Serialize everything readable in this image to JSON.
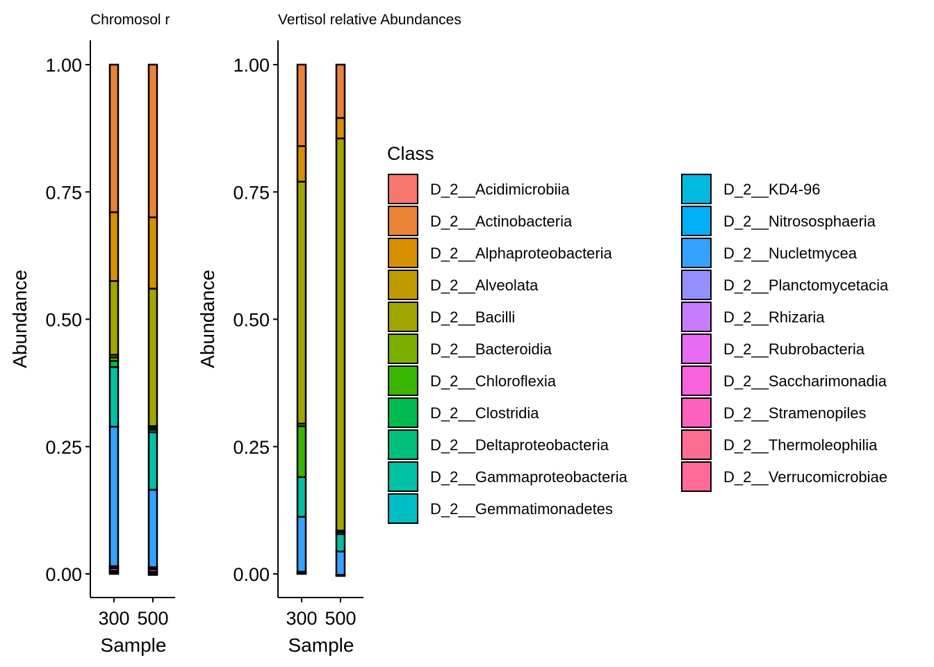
{
  "chart_data": [
    {
      "type": "bar",
      "stacked": true,
      "title": "Chromosol r",
      "xlabel": "Sample",
      "ylabel": "Abundance",
      "ylim": [
        0,
        1
      ],
      "yticks": [
        "0.00",
        "0.25",
        "0.50",
        "0.75",
        "1.00"
      ],
      "categories": [
        "300",
        "500"
      ],
      "series": [
        {
          "name": "D_2__Actinobacteria",
          "values": [
            0.29,
            0.3
          ]
        },
        {
          "name": "D_2__Alphaproteobacteria",
          "values": [
            0.135,
            0.14
          ]
        },
        {
          "name": "D_2__Bacilli",
          "values": [
            0.145,
            0.27
          ]
        },
        {
          "name": "D_2__Bacteroidia",
          "values": [
            0.005,
            0.003
          ]
        },
        {
          "name": "D_2__Chloroflexia",
          "values": [
            0.007,
            0.004
          ]
        },
        {
          "name": "D_2__Clostridia",
          "values": [
            0.012,
            0.005
          ]
        },
        {
          "name": "D_2__Gammaproteobacteria",
          "values": [
            0.117,
            0.113
          ]
        },
        {
          "name": "D_2__Nucletmycea",
          "values": [
            0.274,
            0.152
          ]
        },
        {
          "name": "D_2__Nitrososphaeria",
          "values": [
            0.002,
            0.002
          ]
        },
        {
          "name": "D_2__Rhizaria",
          "values": [
            0.002,
            0.002
          ]
        },
        {
          "name": "D_2__Stramenopiles",
          "values": [
            0.005,
            0.005
          ]
        },
        {
          "name": "D_2__Thermoleophilia",
          "values": [
            0.003,
            0.003
          ]
        },
        {
          "name": "D_2__Verrucomicrobiae",
          "values": [
            0.003,
            0.003
          ]
        }
      ]
    },
    {
      "type": "bar",
      "stacked": true,
      "title": "Vertisol relative Abundances",
      "xlabel": "Sample",
      "ylabel": "Abundance",
      "ylim": [
        0,
        1
      ],
      "yticks": [
        "0.00",
        "0.25",
        "0.50",
        "0.75",
        "1.00"
      ],
      "categories": [
        "300",
        "500"
      ],
      "series": [
        {
          "name": "D_2__Actinobacteria",
          "values": [
            0.16,
            0.105
          ]
        },
        {
          "name": "D_2__Alphaproteobacteria",
          "values": [
            0.07,
            0.04
          ]
        },
        {
          "name": "D_2__Bacilli",
          "values": [
            0.475,
            0.77
          ]
        },
        {
          "name": "D_2__Bacteroidia",
          "values": [
            0.005,
            0.003
          ]
        },
        {
          "name": "D_2__Chloroflexia",
          "values": [
            0.1,
            0.0
          ]
        },
        {
          "name": "D_2__Deltaproteobacteria",
          "values": [
            0.0,
            0.004
          ]
        },
        {
          "name": "D_2__Gammaproteobacteria",
          "values": [
            0.078,
            0.034
          ]
        },
        {
          "name": "D_2__Nucletmycea",
          "values": [
            0.108,
            0.046
          ]
        },
        {
          "name": "D_2__Stramenopiles",
          "values": [
            0.002,
            0.001
          ]
        },
        {
          "name": "D_2__Thermoleophilia",
          "values": [
            0.002,
            0.001
          ]
        }
      ]
    }
  ],
  "legend": {
    "title": "Class",
    "placement": "right",
    "entries": [
      {
        "label": "D_2__Acidimicrobiia",
        "color": "#F8766D"
      },
      {
        "label": "D_2__Actinobacteria",
        "color": "#EB8335"
      },
      {
        "label": "D_2__Alphaproteobacteria",
        "color": "#D89000"
      },
      {
        "label": "D_2__Alveolata",
        "color": "#C09B00"
      },
      {
        "label": "D_2__Bacilli",
        "color": "#A3A500"
      },
      {
        "label": "D_2__Bacteroidia",
        "color": "#7CAE00"
      },
      {
        "label": "D_2__Chloroflexia",
        "color": "#39B600"
      },
      {
        "label": "D_2__Clostridia",
        "color": "#00BB4E"
      },
      {
        "label": "D_2__Deltaproteobacteria",
        "color": "#00BF7D"
      },
      {
        "label": "D_2__Gammaproteobacteria",
        "color": "#00C1A3"
      },
      {
        "label": "D_2__Gemmatimonadetes",
        "color": "#00BFC4"
      },
      {
        "label": "D_2__KD4-96",
        "color": "#00BAE0"
      },
      {
        "label": "D_2__Nitrososphaeria",
        "color": "#00B0F6"
      },
      {
        "label": "D_2__Nucletmycea",
        "color": "#35A2FF"
      },
      {
        "label": "D_2__Planctomycetacia",
        "color": "#9590FF"
      },
      {
        "label": "D_2__Rhizaria",
        "color": "#C77CFF"
      },
      {
        "label": "D_2__Rubrobacteria",
        "color": "#E76BF3"
      },
      {
        "label": "D_2__Saccharimonadia",
        "color": "#FA62DB"
      },
      {
        "label": "D_2__Stramenopiles",
        "color": "#FF62BC"
      },
      {
        "label": "D_2__Thermoleophilia",
        "color": "#FF6C91"
      },
      {
        "label": "D_2__Verrucomicrobiae",
        "color": "#FF6A98"
      }
    ]
  }
}
